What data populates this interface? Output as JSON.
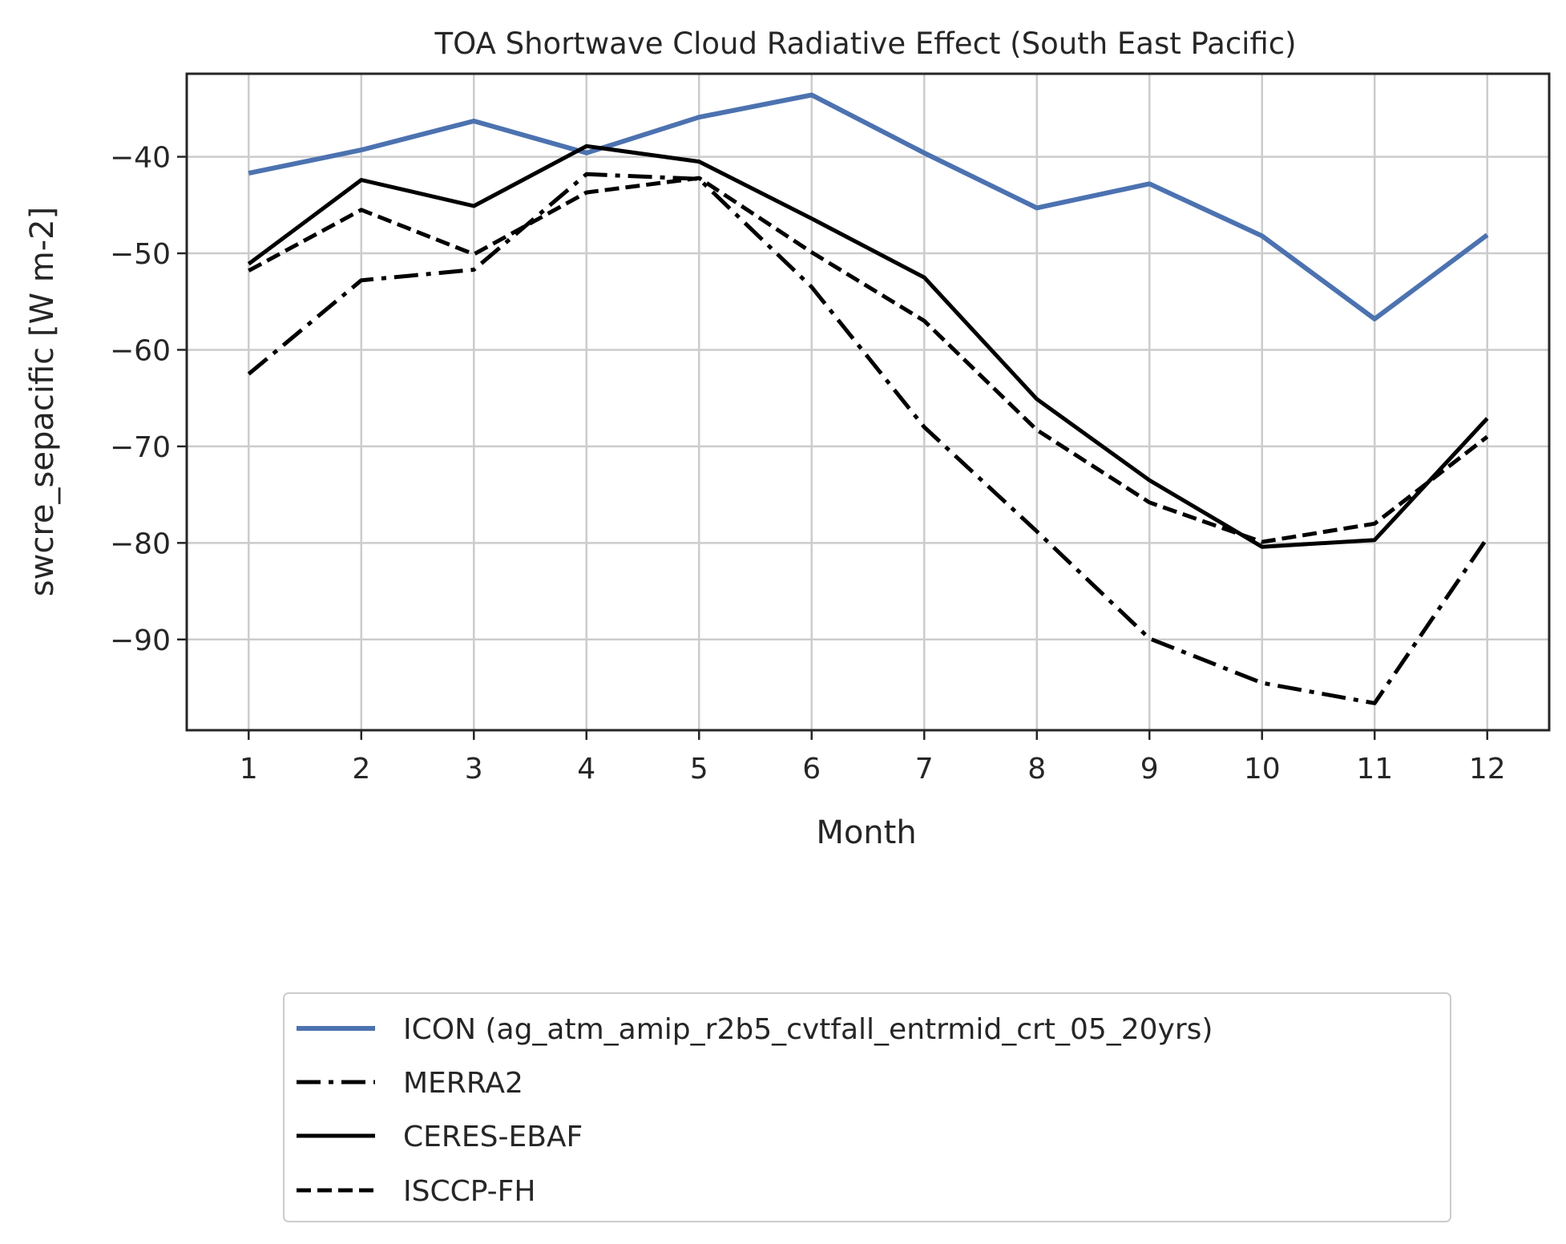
{
  "chart_data": {
    "type": "line",
    "title": "TOA Shortwave Cloud Radiative Effect (South East Pacific)",
    "xlabel": "Month",
    "ylabel": "swcre_sepacific [W m-2]",
    "x": [
      1,
      2,
      3,
      4,
      5,
      6,
      7,
      8,
      9,
      10,
      11,
      12
    ],
    "xticks": [
      "1",
      "2",
      "3",
      "4",
      "5",
      "6",
      "7",
      "8",
      "9",
      "10",
      "11",
      "12"
    ],
    "yticks": [
      -40,
      -50,
      -60,
      -70,
      -80,
      -90
    ],
    "ytick_labels": [
      "−40",
      "−50",
      "−60",
      "−70",
      "−80",
      "−90"
    ],
    "xlim": [
      0.45,
      12.55
    ],
    "ylim": [
      -99.4,
      -31.4
    ],
    "grid": true,
    "legend_position": "below plot, centered",
    "series": [
      {
        "name": "ICON (ag_atm_amip_r2b5_cvtfall_entrmid_crt_05_20yrs)",
        "color": "#4c72b0",
        "style": "solid",
        "values": [
          -41.7,
          -39.3,
          -36.3,
          -39.6,
          -35.9,
          -33.6,
          -39.6,
          -45.3,
          -42.8,
          -48.2,
          -56.8,
          -48.1
        ]
      },
      {
        "name": "MERRA2",
        "color": "#000000",
        "style": "dashdot",
        "values": [
          -62.5,
          -52.8,
          -51.7,
          -41.8,
          -42.3,
          -53.5,
          -68.0,
          -78.8,
          -89.9,
          -94.5,
          -96.6,
          -79.5
        ]
      },
      {
        "name": "CERES-EBAF",
        "color": "#000000",
        "style": "solid",
        "values": [
          -51.1,
          -42.4,
          -45.1,
          -38.9,
          -40.5,
          -46.4,
          -52.5,
          -65.1,
          -73.5,
          -80.4,
          -79.7,
          -67.1
        ]
      },
      {
        "name": "ISCCP-FH",
        "color": "#000000",
        "style": "dashed",
        "values": [
          -51.8,
          -45.5,
          -50.1,
          -43.7,
          -42.2,
          -49.9,
          -57.0,
          -68.3,
          -75.8,
          -79.9,
          -78.0,
          -69.0
        ]
      }
    ]
  }
}
